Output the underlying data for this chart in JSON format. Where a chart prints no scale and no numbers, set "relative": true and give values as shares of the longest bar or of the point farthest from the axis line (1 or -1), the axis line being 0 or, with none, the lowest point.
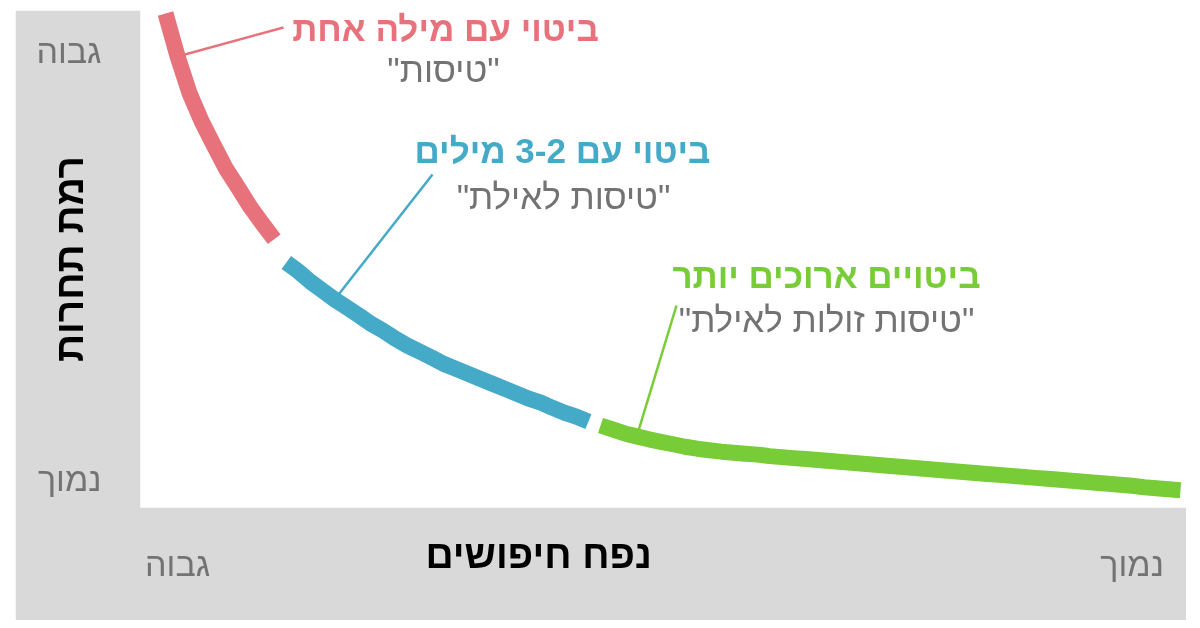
{
  "chart_data": {
    "type": "line",
    "relative": true,
    "xlabel": "נפח חיפושים",
    "ylabel": "רמת תחרות",
    "categories": [
      null,
      "גבוה",
      null,
      null,
      null,
      null,
      null,
      null,
      null,
      null,
      null,
      null,
      null,
      null,
      null,
      null,
      null,
      null,
      null,
      null,
      null,
      null,
      null,
      null,
      null,
      null,
      null,
      null,
      null,
      null,
      null,
      null,
      null,
      null,
      null,
      null,
      null,
      null,
      null,
      null,
      null,
      null,
      null,
      null,
      null,
      null,
      null,
      null,
      null,
      null,
      null,
      null,
      null,
      null,
      null,
      null,
      null,
      null,
      null,
      null,
      null,
      null,
      null,
      null,
      null,
      null,
      null,
      null,
      null,
      null,
      null,
      null,
      null,
      null,
      null,
      null,
      null,
      null,
      null,
      null,
      "נמוך",
      null,
      null,
      null,
      null
    ],
    "series": [
      {
        "name": "ביטוי עם מילה אחת",
        "color": "#e8727c",
        "values": [
          1.0,
          0.913,
          0.838,
          0.781,
          0.733,
          0.686,
          0.648,
          0.609,
          0.575,
          0.543,
          null,
          null,
          null,
          null,
          null,
          null,
          null,
          null,
          null,
          null,
          null,
          null,
          null,
          null,
          null,
          null,
          null,
          null,
          null,
          null,
          null,
          null,
          null,
          null,
          null,
          null,
          null,
          null,
          null,
          null,
          null,
          null,
          null,
          null,
          null,
          null,
          null,
          null,
          null,
          null,
          null,
          null,
          null,
          null,
          null,
          null,
          null,
          null,
          null,
          null,
          null,
          null,
          null,
          null,
          null,
          null,
          null,
          null,
          null,
          null,
          null,
          null,
          null,
          null,
          null,
          null,
          null,
          null,
          null,
          null,
          null,
          null,
          null,
          null,
          null
        ]
      },
      {
        "name": "ביטוי עם 3-2 מילים",
        "color": "#45a9c8",
        "values": [
          null,
          null,
          null,
          null,
          null,
          null,
          null,
          null,
          null,
          null,
          0.496,
          0.478,
          0.457,
          0.439,
          0.421,
          0.405,
          0.389,
          0.372,
          0.358,
          0.342,
          0.328,
          0.316,
          0.304,
          0.291,
          0.281,
          0.271,
          0.261,
          0.251,
          0.241,
          0.231,
          0.221,
          0.213,
          0.202,
          0.192,
          0.184,
          0.174,
          null,
          null,
          null,
          null,
          null,
          null,
          null,
          null,
          null,
          null,
          null,
          null,
          null,
          null,
          null,
          null,
          null,
          null,
          null,
          null,
          null,
          null,
          null,
          null,
          null,
          null,
          null,
          null,
          null,
          null,
          null,
          null,
          null,
          null,
          null,
          null,
          null,
          null,
          null,
          null,
          null,
          null,
          null,
          null,
          null,
          null,
          null,
          null,
          null
        ]
      },
      {
        "name": "ביטויים ארוכים יותר",
        "color": "#78cc38",
        "values": [
          null,
          null,
          null,
          null,
          null,
          null,
          null,
          null,
          null,
          null,
          null,
          null,
          null,
          null,
          null,
          null,
          null,
          null,
          null,
          null,
          null,
          null,
          null,
          null,
          null,
          null,
          null,
          null,
          null,
          null,
          null,
          null,
          null,
          null,
          null,
          null,
          0.166,
          0.158,
          0.15,
          0.144,
          0.138,
          0.133,
          0.128,
          0.123,
          0.119,
          0.116,
          0.113,
          0.111,
          0.109,
          0.107,
          0.104,
          0.102,
          0.1,
          0.098,
          0.096,
          0.094,
          0.092,
          0.09,
          0.088,
          0.086,
          0.084,
          0.082,
          0.08,
          0.078,
          0.076,
          0.074,
          0.072,
          0.07,
          0.068,
          0.066,
          0.064,
          0.062,
          0.06,
          0.058,
          0.056,
          0.054,
          0.052,
          0.05,
          0.048,
          0.046,
          0.044,
          0.041,
          0.039,
          0.037,
          0.035
        ]
      }
    ],
    "annotations": [
      "\"טיסות\"",
      "\"טיסות לאילת\"",
      "\"טיסות זולות לאילת\"",
      "גבוה",
      "נמוך"
    ]
  }
}
